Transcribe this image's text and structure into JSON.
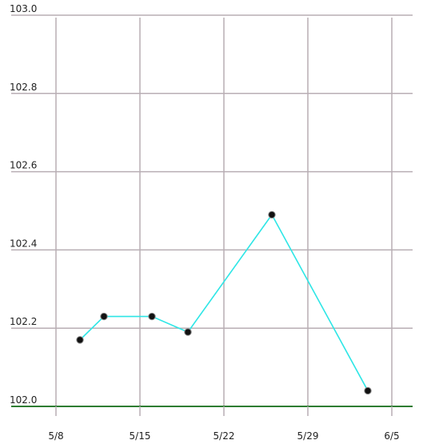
{
  "chart_data": {
    "type": "line",
    "title": "",
    "xlabel": "",
    "ylabel": "",
    "x_ticks": [
      "5/8",
      "5/15",
      "5/22",
      "5/29",
      "6/5"
    ],
    "y_ticks": [
      "103.0",
      "102.8",
      "102.6",
      "102.4",
      "102.2",
      "102.0"
    ],
    "ylim": [
      102.0,
      103.0
    ],
    "xlim": [
      "2025-05-08",
      "2025-06-05"
    ],
    "grid": true,
    "series": [
      {
        "x": [
          "2025-05-10",
          "2025-05-12",
          "2025-05-16",
          "2025-05-19",
          "2025-05-26",
          "2025-06-03"
        ],
        "values": [
          102.17,
          102.23,
          102.23,
          102.19,
          102.49,
          102.04
        ]
      }
    ],
    "colors": {
      "line": "#2ee6e6",
      "marker_fill": "#111111",
      "grid": "#b8aeb4",
      "baseline": "#2e7d32"
    }
  }
}
